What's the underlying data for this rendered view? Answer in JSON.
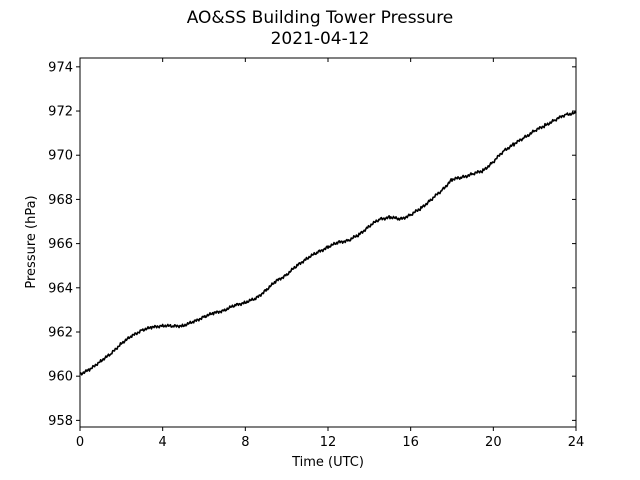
{
  "chart_data": {
    "type": "line",
    "title": "AO&SS Building Tower Pressure",
    "subtitle": "2021-04-12",
    "xlabel": "Time (UTC)",
    "ylabel": "Pressure (hPa)",
    "xlim": [
      0,
      24
    ],
    "ylim": [
      957.7,
      974.4
    ],
    "xticks": [
      0,
      4,
      8,
      12,
      16,
      20,
      24
    ],
    "yticks": [
      958,
      960,
      962,
      964,
      966,
      968,
      970,
      972,
      974
    ],
    "grid": false,
    "legend": "none",
    "series_color": "#000000",
    "series": [
      {
        "x": [
          0,
          0.5,
          1,
          1.5,
          2,
          2.5,
          3,
          3.5,
          4,
          4.5,
          5,
          5.5,
          6,
          6.5,
          7,
          7.5,
          8,
          8.5,
          9,
          9.5,
          10,
          10.5,
          11,
          11.5,
          12,
          12.5,
          13,
          13.5,
          14,
          14.5,
          15,
          15.5,
          16,
          16.5,
          17,
          17.5,
          18,
          18.5,
          19,
          19.5,
          20,
          20.5,
          21,
          21.5,
          22,
          22.5,
          23,
          23.5,
          24
        ],
        "y": [
          960.1,
          960.3,
          960.7,
          961.0,
          961.5,
          961.8,
          962.1,
          962.2,
          962.3,
          962.25,
          962.3,
          962.45,
          962.7,
          962.85,
          963.0,
          963.2,
          963.35,
          963.5,
          963.9,
          964.3,
          964.6,
          965.0,
          965.35,
          965.6,
          965.85,
          966.05,
          966.15,
          966.4,
          966.8,
          967.1,
          967.2,
          967.1,
          967.3,
          967.6,
          968.0,
          968.4,
          968.9,
          969.0,
          969.15,
          969.3,
          969.7,
          970.2,
          970.5,
          970.8,
          971.1,
          971.35,
          971.6,
          971.85,
          971.9
        ]
      }
    ]
  }
}
